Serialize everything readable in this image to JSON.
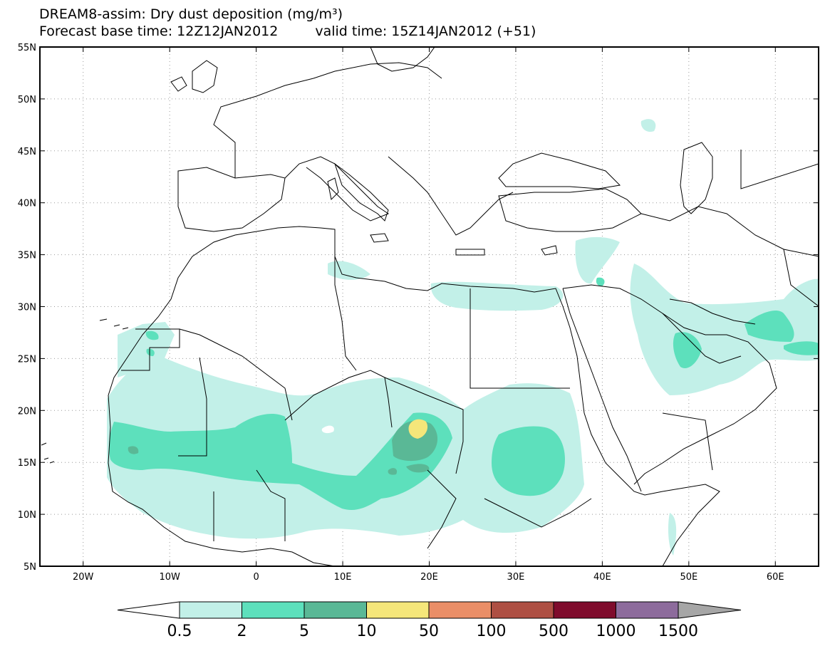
{
  "title": {
    "line1": "DREAM8-assim: Dry dust deposition (mg/m³)",
    "base_time": "Forecast base time: 12Z12JAN2012",
    "valid_time": "valid time: 15Z14JAN2012 (+51)"
  },
  "map": {
    "lon_range": [
      -25,
      65
    ],
    "lat_range": [
      5,
      55
    ],
    "grid": "dotted",
    "lon_ticks": [
      {
        "lon": -20,
        "label": "20W"
      },
      {
        "lon": -10,
        "label": "10W"
      },
      {
        "lon": 0,
        "label": "0"
      },
      {
        "lon": 10,
        "label": "10E"
      },
      {
        "lon": 20,
        "label": "20E"
      },
      {
        "lon": 30,
        "label": "30E"
      },
      {
        "lon": 40,
        "label": "40E"
      },
      {
        "lon": 50,
        "label": "50E"
      },
      {
        "lon": 60,
        "label": "60E"
      }
    ],
    "lat_ticks": [
      {
        "lat": 55,
        "label": "55N"
      },
      {
        "lat": 50,
        "label": "50N"
      },
      {
        "lat": 45,
        "label": "45N"
      },
      {
        "lat": 40,
        "label": "40N"
      },
      {
        "lat": 35,
        "label": "35N"
      },
      {
        "lat": 30,
        "label": "30N"
      },
      {
        "lat": 25,
        "label": "25N"
      },
      {
        "lat": 20,
        "label": "20N"
      },
      {
        "lat": 15,
        "label": "15N"
      },
      {
        "lat": 10,
        "label": "10N"
      },
      {
        "lat": 5,
        "label": "5N"
      }
    ]
  },
  "colorbar": {
    "labels": [
      "0.5",
      "2",
      "5",
      "10",
      "50",
      "100",
      "500",
      "1000",
      "1500"
    ],
    "colors": [
      "#c2f0e8",
      "#5de0bc",
      "#5ab896",
      "#f5e67a",
      "#ea8e67",
      "#ae4f43",
      "#7f0b2c",
      "#8d6b9c"
    ],
    "under_color": "#ffffff",
    "over_color": "#a6a6a6"
  },
  "legend_colors": {
    "light": "#c2f0e8",
    "medium": "#5de0bc",
    "dark": "#5ab896",
    "peak": "#f5e67a",
    "coast": "#000000"
  }
}
